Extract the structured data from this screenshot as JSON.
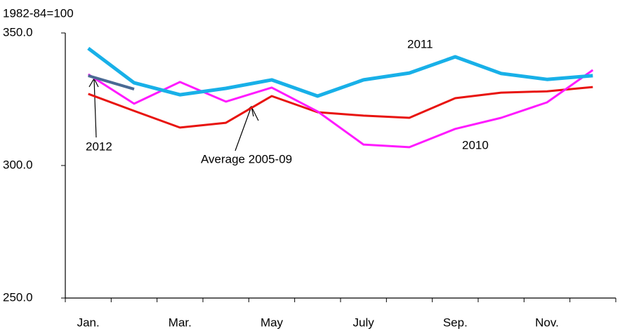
{
  "chart_data": {
    "type": "line",
    "y_unit_label": "1982-84=100",
    "categories": [
      "Jan.",
      null,
      "Mar.",
      null,
      "May",
      null,
      "July",
      null,
      "Sep.",
      null,
      "Nov.",
      null
    ],
    "ylim": [
      250,
      350
    ],
    "yticks": [
      {
        "value": 250,
        "label": "250.0"
      },
      {
        "value": 300,
        "label": "300.0"
      },
      {
        "value": 350,
        "label": "350.0"
      }
    ],
    "series": [
      {
        "name": "Average 2005-09",
        "color": "#e8130f",
        "values": [
          327.0,
          320.6,
          314.3,
          316.1,
          326.2,
          320.1,
          318.8,
          318.0,
          325.4,
          327.5,
          328.0,
          329.6
        ]
      },
      {
        "name": "2010",
        "color": "#ff1aff",
        "values": [
          334.4,
          323.3,
          331.5,
          324.1,
          329.4,
          320.4,
          307.9,
          306.9,
          313.8,
          318.0,
          323.8,
          336.0
        ]
      },
      {
        "name": "2011",
        "color": "#18b0e8",
        "values": [
          344.2,
          331.2,
          326.7,
          329.1,
          332.3,
          326.2,
          332.3,
          334.9,
          341.0,
          334.7,
          332.5,
          333.9
        ]
      },
      {
        "name": "2012",
        "color": "#4a6a94",
        "values": [
          333.9,
          328.8,
          null,
          null,
          null,
          null,
          null,
          null,
          null,
          null,
          null,
          null
        ]
      }
    ]
  }
}
